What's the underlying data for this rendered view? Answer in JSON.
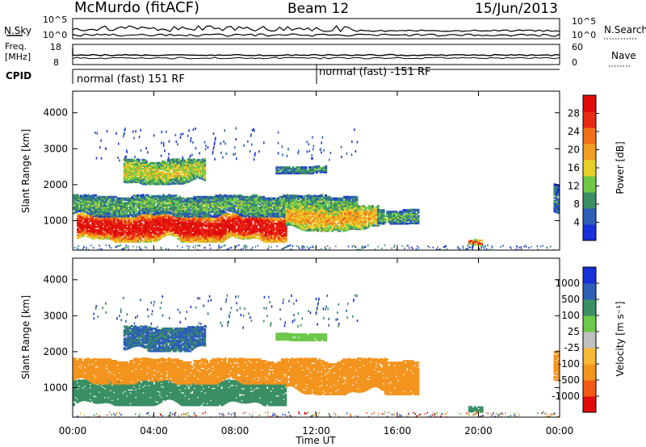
{
  "header": {
    "station": "McMurdo (fitACF)",
    "beam": "Beam 12",
    "date": "15/Jun/2013"
  },
  "strip_labels": {
    "nsky": "N.Sky",
    "nsky_top": "10^5",
    "nsky_bot": "10^0",
    "nsearch": "N.Search",
    "nsearch_top": "10^5",
    "nsearch_bot": "10^0",
    "freq_title": "Freq.",
    "freq_unit": "[MHz]",
    "freq_top": "18",
    "freq_bot": "8",
    "nave": "Nave",
    "nave_top": "60",
    "nave_bot": "0",
    "cpid": "CPID",
    "mode_left": "normal (fast) 151 RF",
    "mode_right": "normal (fast) -151 RF"
  },
  "axes": {
    "xlabel": "Time UT",
    "ylabel": "Slant Range [km]",
    "xticks": [
      "00:00",
      "04:00",
      "08:00",
      "12:00",
      "16:00",
      "20:00",
      "00:00"
    ],
    "yticks": [
      "1000",
      "2000",
      "3000",
      "4000"
    ]
  },
  "colorbars": {
    "power": {
      "label": "Power [dB]",
      "ticks": [
        "4",
        "8",
        "12",
        "16",
        "20",
        "24",
        "28"
      ]
    },
    "velocity": {
      "label": "Velocity [m s⁻¹]",
      "ticks": [
        "-1000",
        "-500",
        "-100",
        "-25",
        "25",
        "100",
        "500",
        "1000"
      ]
    }
  },
  "colors": {
    "power": [
      "#1830d8",
      "#2e5fb4",
      "#3a8f64",
      "#6fc84a",
      "#e8d02a",
      "#f0a020",
      "#f07018",
      "#e82a14",
      "#e00a0a"
    ],
    "velocity": [
      "#e00a0a",
      "#f05a14",
      "#f3941e",
      "#f7b933",
      "#c0c0c0",
      "#6cc84a",
      "#3a8f64",
      "#2e5fb4",
      "#1830d8"
    ]
  },
  "chart_data": [
    {
      "type": "heatmap",
      "title": "",
      "quantity": "Power",
      "xlabel": "Time UT",
      "ylabel": "Slant Range [km]",
      "xlim": [
        0,
        24
      ],
      "ylim": [
        180,
        4600
      ],
      "colorbar": {
        "label": "Power [dB]",
        "range": [
          0,
          30
        ],
        "ticks": [
          4,
          8,
          12,
          16,
          20,
          24,
          28
        ]
      },
      "echo_regions": [
        {
          "t_start": 0.2,
          "t_end": 10.5,
          "range_min": 400,
          "range_max": 1200,
          "power_db": 28
        },
        {
          "t_start": 0.0,
          "t_end": 14.0,
          "range_min": 1100,
          "range_max": 1700,
          "power_db": 10
        },
        {
          "t_start": 10.5,
          "t_end": 15.0,
          "range_min": 700,
          "range_max": 1400,
          "power_db": 18
        },
        {
          "t_start": 15.0,
          "t_end": 17.0,
          "range_min": 900,
          "range_max": 1300,
          "power_db": 10
        },
        {
          "t_start": 2.5,
          "t_end": 6.5,
          "range_min": 2000,
          "range_max": 2700,
          "power_db": 14
        },
        {
          "t_start": 10.0,
          "t_end": 12.5,
          "range_min": 2300,
          "range_max": 2500,
          "power_db": 8
        },
        {
          "t_start": 19.5,
          "t_end": 20.2,
          "range_min": 300,
          "range_max": 450,
          "power_db": 24
        },
        {
          "t_start": 23.7,
          "t_end": 24.0,
          "range_min": 1200,
          "range_max": 2000,
          "power_db": 6
        }
      ]
    },
    {
      "type": "heatmap",
      "title": "",
      "quantity": "Velocity",
      "xlabel": "Time UT",
      "ylabel": "Slant Range [km]",
      "xlim": [
        0,
        24
      ],
      "ylim": [
        180,
        4600
      ],
      "colorbar": {
        "label": "Velocity [m s⁻¹]",
        "ticks": [
          -1000,
          -500,
          -100,
          -25,
          25,
          100,
          500,
          1000
        ]
      },
      "echo_regions": [
        {
          "t_start": 0.0,
          "t_end": 10.5,
          "range_min": 500,
          "range_max": 1200,
          "velocity_ms": 300
        },
        {
          "t_start": 0.0,
          "t_end": 10.5,
          "range_min": 1100,
          "range_max": 1800,
          "velocity_ms": -300
        },
        {
          "t_start": 10.5,
          "t_end": 17.0,
          "range_min": 800,
          "range_max": 1800,
          "velocity_ms": -300
        },
        {
          "t_start": 2.5,
          "t_end": 6.5,
          "range_min": 2000,
          "range_max": 2700,
          "velocity_ms": 600
        },
        {
          "t_start": 10.0,
          "t_end": 12.5,
          "range_min": 2300,
          "range_max": 2500,
          "velocity_ms": 60
        },
        {
          "t_start": 19.5,
          "t_end": 20.2,
          "range_min": 300,
          "range_max": 450,
          "velocity_ms": 300
        },
        {
          "t_start": 23.7,
          "t_end": 24.0,
          "range_min": 1000,
          "range_max": 2000,
          "velocity_ms": -200
        }
      ]
    }
  ]
}
